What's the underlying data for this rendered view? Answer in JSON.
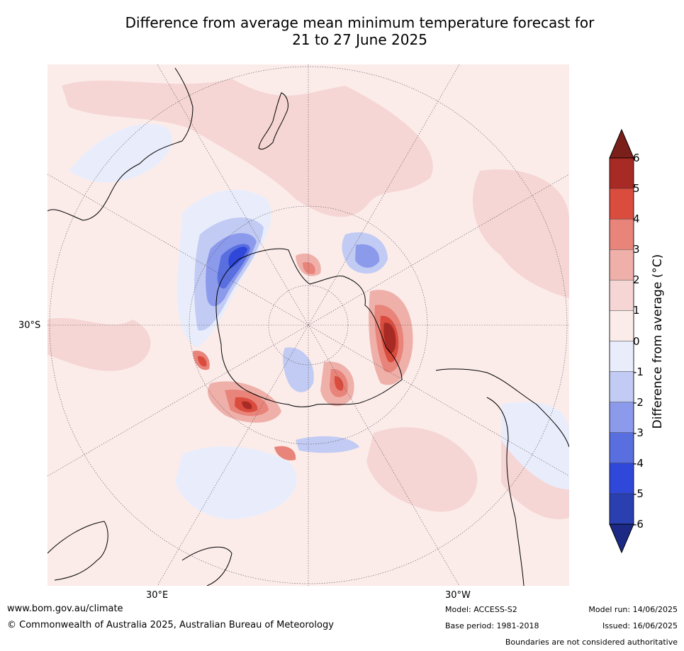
{
  "title": {
    "line1": "Difference from average mean minimum temperature forecast for",
    "line2": "21 to 27 June 2025"
  },
  "map": {
    "lat_label": "30°S",
    "lon_labels": [
      "30°E",
      "30°W"
    ]
  },
  "colorbar": {
    "title": "Difference from average (°C)",
    "ticks": [
      "6",
      "5",
      "4",
      "3",
      "2",
      "1",
      "0",
      "-1",
      "-2",
      "-3",
      "-4",
      "-5",
      "-6"
    ],
    "colors": [
      "#7a1f1a",
      "#a72a24",
      "#d94c3e",
      "#e8847a",
      "#efb0aa",
      "#f5d6d4",
      "#fbecea",
      "#e9edfb",
      "#c2cbf3",
      "#8c9aec",
      "#5a6fdf",
      "#3048d9",
      "#2a3fb0",
      "#1d2a85"
    ]
  },
  "footer": {
    "website": "www.bom.gov.au/climate",
    "copyright": "© Commonwealth of Australia 2025, Australian Bureau of Meteorology",
    "model": "Model: ACCESS-S2",
    "model_run": "Model run: 14/06/2025",
    "base_period": "Base period: 1981-2018",
    "issued": "Issued: 16/06/2025",
    "disclaimer": "Boundaries are not considered authoritative"
  }
}
